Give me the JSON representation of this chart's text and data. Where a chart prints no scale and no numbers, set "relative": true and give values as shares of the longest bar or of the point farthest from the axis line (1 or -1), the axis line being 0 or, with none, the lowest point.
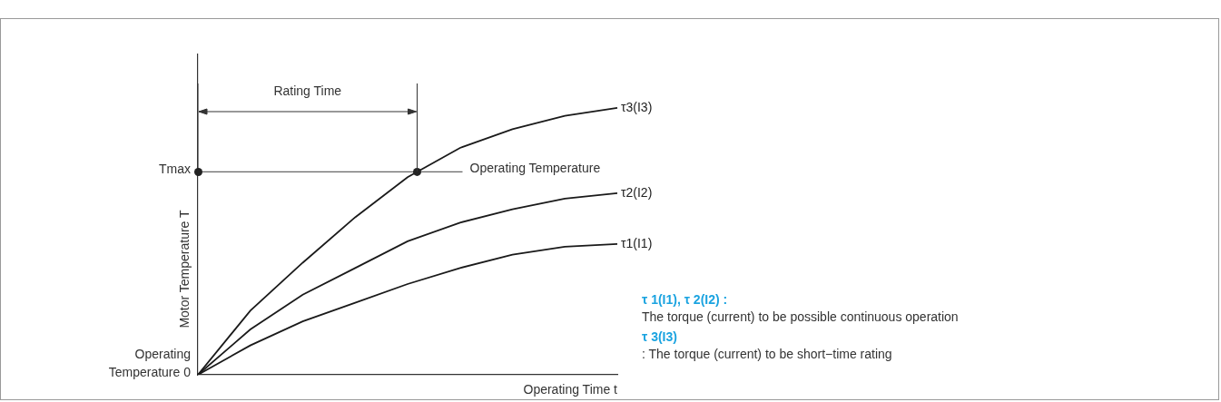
{
  "chart_data": {
    "type": "line",
    "relative": true,
    "xlabel": "Operating Time t",
    "ylabel": "Motor Temperature T",
    "legend": false,
    "marker": "none",
    "categories": [
      null,
      null,
      null,
      null,
      null,
      null,
      null,
      null,
      null
    ],
    "series": [
      {
        "name": "τ3(I3)",
        "color": "#1a1a1a",
        "values": [
          0,
          0.24,
          0.42,
          0.59,
          0.74,
          0.85,
          0.92,
          0.97,
          1
        ]
      },
      {
        "name": "τ2(I2)",
        "color": "#1a1a1a",
        "values": [
          0,
          0.17,
          0.3,
          0.4,
          0.5,
          0.57,
          0.62,
          0.66,
          0.68
        ]
      },
      {
        "name": "τ1(I1)",
        "color": "#1a1a1a",
        "values": [
          0,
          0.11,
          0.2,
          0.27,
          0.34,
          0.4,
          0.45,
          0.48,
          0.49
        ]
      }
    ],
    "ref_lines": [
      {
        "axis": "y",
        "value": 0.76,
        "label": "Tmax",
        "color": "#666666"
      }
    ],
    "annotations": [
      "Operating Temperature",
      "Operating Temperature 0",
      "Rating Time",
      "τ 1(I1), τ 2(I2) :",
      "The torque (current) to be possible continuous operation",
      "τ 3(I3)",
      ": The torque (current) to be short−time rating"
    ]
  }
}
